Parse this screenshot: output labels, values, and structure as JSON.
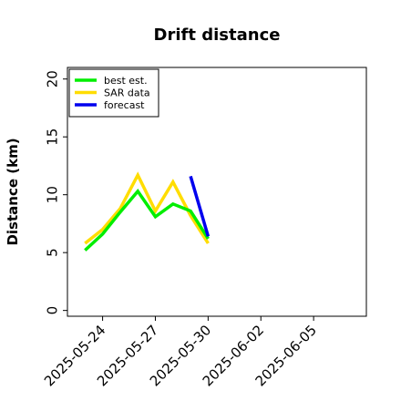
{
  "chart_data": {
    "type": "line",
    "title": "Drift distance",
    "xlabel": "",
    "ylabel": "Distance (km)",
    "xlim": [
      "2025-05-22",
      "2025-06-08"
    ],
    "ylim": [
      -0.5,
      21
    ],
    "xticks": [
      "2025-05-24",
      "2025-05-27",
      "2025-05-30",
      "2025-06-02",
      "2025-06-05"
    ],
    "yticks": [
      0,
      5,
      10,
      15,
      20
    ],
    "grid": false,
    "legend": "top-left",
    "series": [
      {
        "name": "best est.",
        "color": "#00ee00",
        "points": [
          {
            "x": "2025-05-23",
            "y": 5.2
          },
          {
            "x": "2025-05-24",
            "y": 6.6
          },
          {
            "x": "2025-05-25",
            "y": 8.5
          },
          {
            "x": "2025-05-26",
            "y": 10.3
          },
          {
            "x": "2025-05-27",
            "y": 8.1
          },
          {
            "x": "2025-05-28",
            "y": 9.2
          },
          {
            "x": "2025-05-29",
            "y": 8.6
          },
          {
            "x": "2025-05-30",
            "y": 6.2
          }
        ]
      },
      {
        "name": "SAR data",
        "color": "#ffdd00",
        "points": [
          {
            "x": "2025-05-23",
            "y": 5.8
          },
          {
            "x": "2025-05-24",
            "y": 7.0
          },
          {
            "x": "2025-05-25",
            "y": 8.8
          },
          {
            "x": "2025-05-26",
            "y": 11.7
          },
          {
            "x": "2025-05-27",
            "y": 8.6
          },
          {
            "x": "2025-05-28",
            "y": 11.1
          },
          {
            "x": "2025-05-29",
            "y": 8.2
          },
          {
            "x": "2025-05-30",
            "y": 5.8
          }
        ]
      },
      {
        "name": "forecast",
        "color": "#0000ee",
        "points": [
          {
            "x": "2025-05-29",
            "y": 11.6
          },
          {
            "x": "2025-05-30",
            "y": 6.4
          }
        ]
      }
    ]
  }
}
